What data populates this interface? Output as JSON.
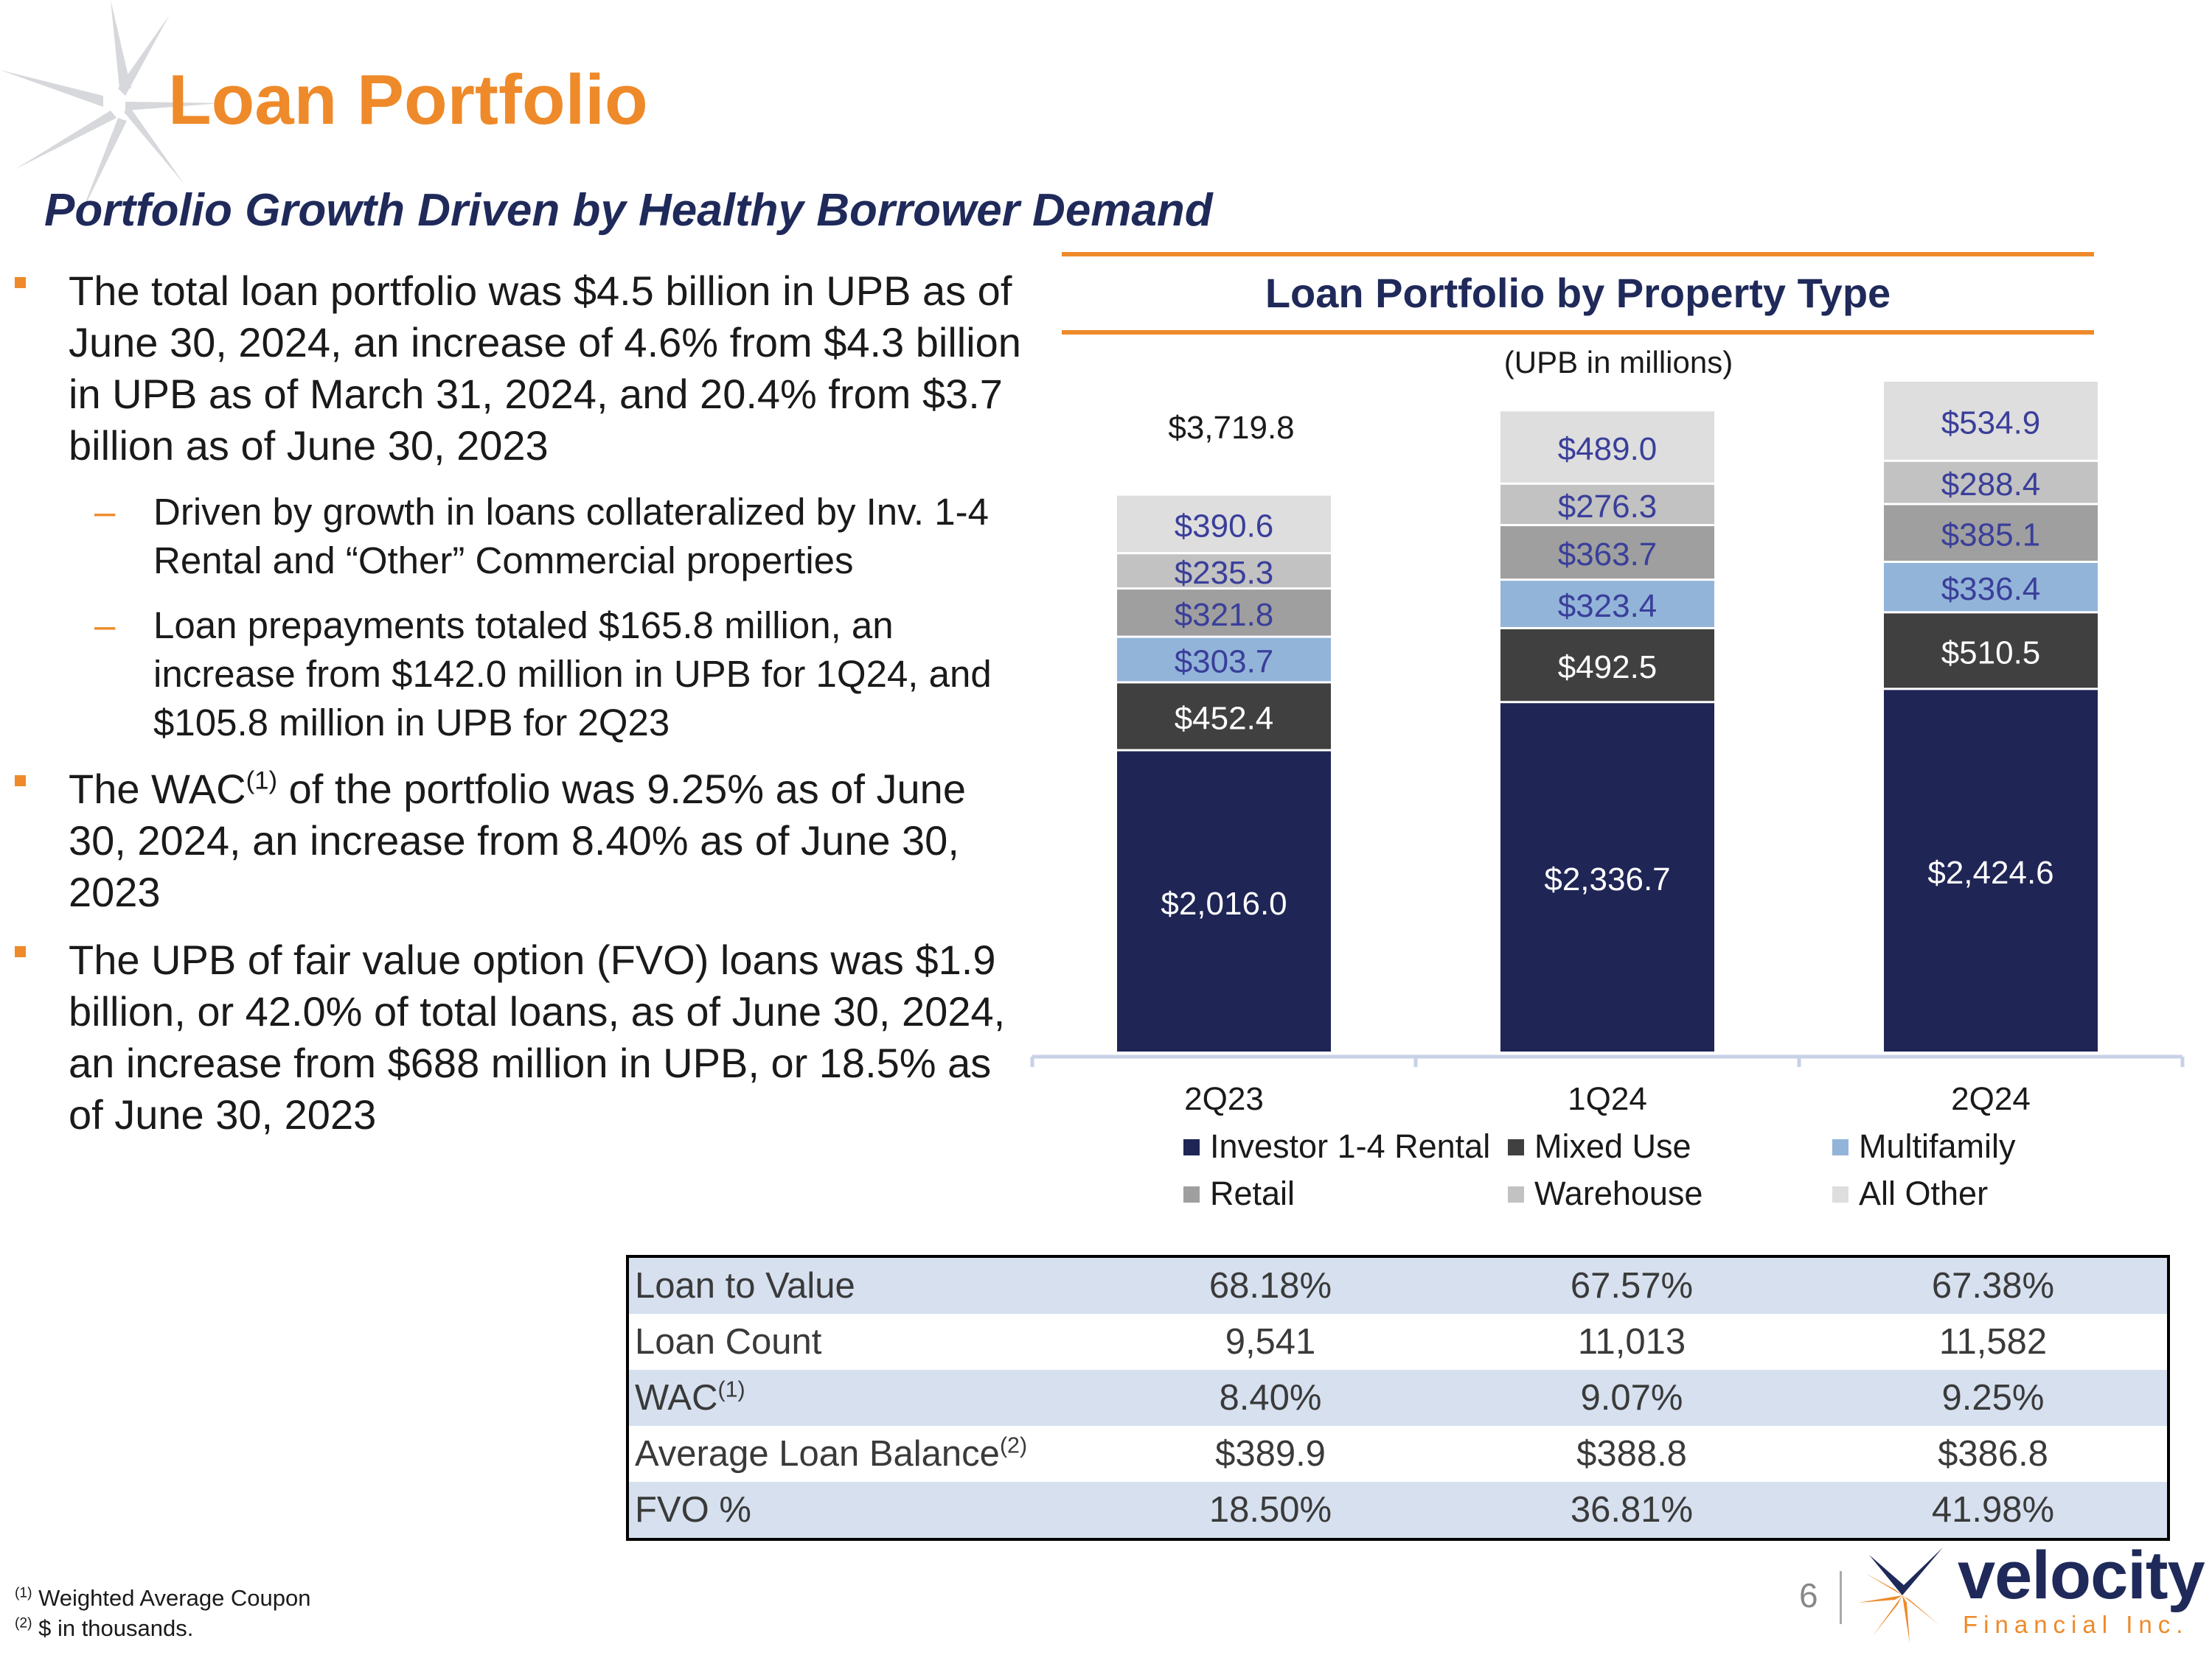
{
  "page": {
    "title": "Loan Portfolio",
    "subtitle": "Portfolio Growth Driven by Healthy Borrower Demand",
    "page_number": "6"
  },
  "bullets": [
    {
      "text": "The total loan portfolio was $4.5 billion in UPB as of June 30, 2024, an increase of 4.6% from $4.3 billion in UPB as of March 31, 2024, and 20.4% from $3.7 billion as of June 30, 2023"
    },
    {
      "text": "Driven by growth in loans collateralized by Inv. 1-4 Rental and “Other” Commercial properties"
    },
    {
      "text": "Loan prepayments totaled $165.8 million, an increase from $142.0 million in UPB for 1Q24, and $105.8 million in UPB for 2Q23"
    },
    {
      "pre": "The WAC",
      "sup": "(1)",
      "post": " of the portfolio was 9.25% as of June 30, 2024, an increase from 8.40% as of June 30, 2023"
    },
    {
      "text": "The UPB of fair value option (FVO) loans was $1.9 billion, or 42.0% of total loans, as of June 30, 2024, an increase from $688 million in UPB, or 18.5% as of June 30, 2023"
    }
  ],
  "chart_data": {
    "type": "bar",
    "stacked": true,
    "title": "Loan Portfolio by Property Type",
    "subtitle": "(UPB in millions)",
    "categories": [
      "2Q23",
      "1Q24",
      "2Q24"
    ],
    "series": [
      {
        "name": "Investor 1-4 Rental",
        "values": [
          2016.0,
          2336.7,
          2424.6
        ],
        "labels": [
          "$2,016.0",
          "$2,336.7",
          "$2,424.6"
        ],
        "color": "#1f2555",
        "label_color": "#ffffff"
      },
      {
        "name": "Mixed Use",
        "values": [
          452.4,
          492.5,
          510.5
        ],
        "labels": [
          "$452.4",
          "$492.5",
          "$510.5"
        ],
        "color": "#404040",
        "label_color": "#ffffff"
      },
      {
        "name": "Multifamily",
        "values": [
          303.7,
          323.4,
          336.4
        ],
        "labels": [
          "$303.7",
          "$323.4",
          "$336.4"
        ],
        "color": "#93b4d9",
        "label_color": "#3a3f9a"
      },
      {
        "name": "Retail",
        "values": [
          321.8,
          363.7,
          385.1
        ],
        "labels": [
          "$321.8",
          "$363.7",
          "$385.1"
        ],
        "color": "#9f9f9f",
        "label_color": "#3a3f9a"
      },
      {
        "name": "Warehouse",
        "values": [
          235.3,
          276.3,
          288.4
        ],
        "labels": [
          "$235.3",
          "$276.3",
          "$288.4"
        ],
        "color": "#c2c2c2",
        "label_color": "#3a3f9a"
      },
      {
        "name": "All Other",
        "values": [
          390.6,
          489.0,
          534.9
        ],
        "labels": [
          "$390.6",
          "$489.0",
          "$534.9"
        ],
        "color": "#dedede",
        "label_color": "#3a3f9a"
      }
    ],
    "totals": {
      "2Q23": "$3,719.8"
    },
    "legend": "bottom"
  },
  "table": {
    "rows": [
      {
        "label": "Loan to Value",
        "sup": "",
        "values": [
          "68.18%",
          "67.57%",
          "67.38%"
        ]
      },
      {
        "label": "Loan Count",
        "sup": "",
        "values": [
          "9,541",
          "11,013",
          "11,582"
        ]
      },
      {
        "label": "WAC",
        "sup": "(1)",
        "values": [
          "8.40%",
          "9.07%",
          "9.25%"
        ]
      },
      {
        "label": "Average Loan Balance",
        "sup": "(2)",
        "values": [
          "$389.9",
          "$388.8",
          "$386.8"
        ]
      },
      {
        "label": "FVO %",
        "sup": "",
        "values": [
          "18.50%",
          "36.81%",
          "41.98%"
        ]
      }
    ]
  },
  "footnotes": [
    {
      "mark": "(1)",
      "text": " Weighted Average Coupon"
    },
    {
      "mark": "(2)",
      "text": " $ in thousands."
    }
  ],
  "logo": {
    "wordmark": "velocity",
    "subtext": "Financial Inc."
  },
  "colors": {
    "accent": "#ee8a2a",
    "navy": "#1f2a5a",
    "table_shade": "#d6e0ef"
  }
}
